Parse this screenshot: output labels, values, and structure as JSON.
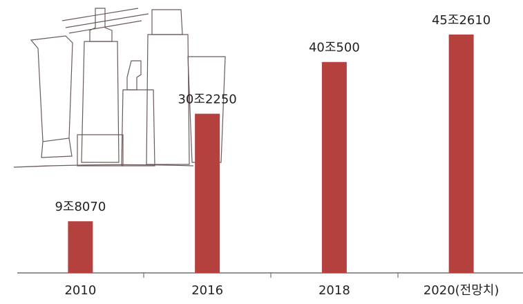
{
  "chart_data": {
    "type": "bar",
    "categories": [
      "2010",
      "2016",
      "2018",
      "2020(전망치)"
    ],
    "values": [
      98070,
      302250,
      400500,
      452610
    ],
    "value_labels": [
      "9조8070",
      "30조2250",
      "40조500",
      "45조2610"
    ],
    "color": "#b5413f"
  }
}
